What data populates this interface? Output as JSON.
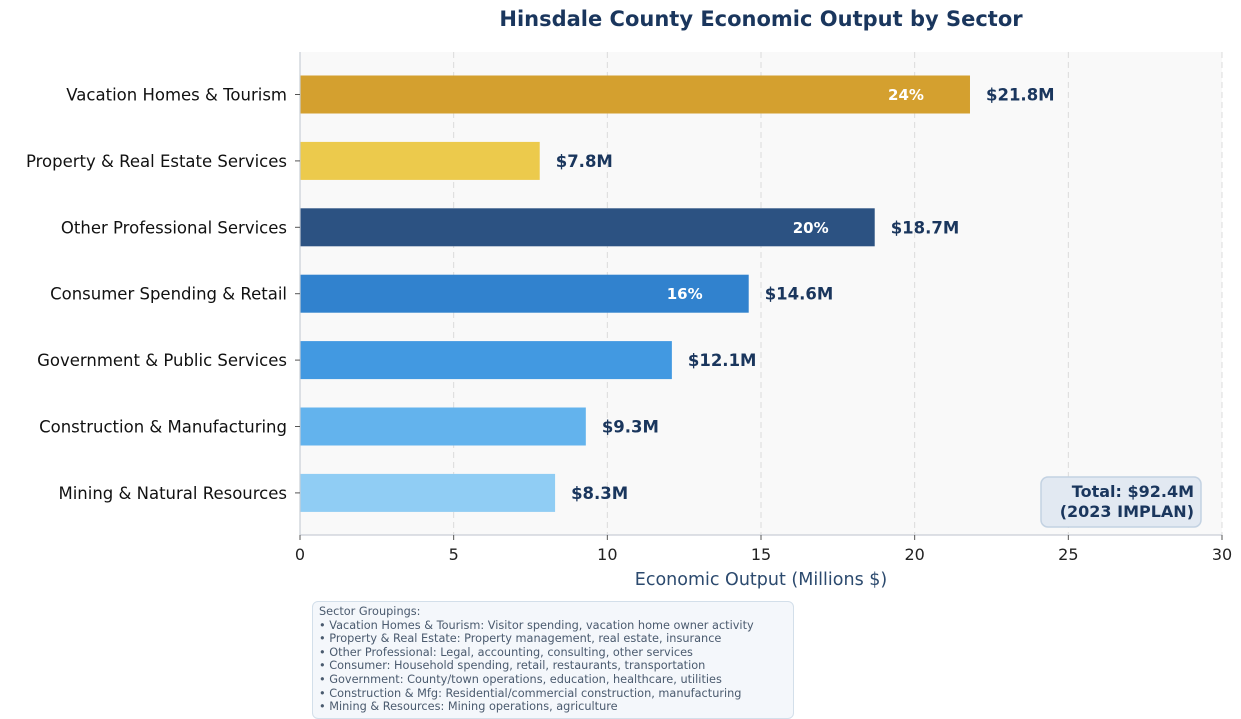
{
  "chart_data": {
    "type": "bar",
    "orientation": "horizontal",
    "title": "Hinsdale County Economic Output by Sector",
    "xlabel": "Economic Output (Millions $)",
    "ylabel": "",
    "xlim": [
      0,
      30
    ],
    "xticks": [
      0,
      5,
      10,
      15,
      20,
      25,
      30
    ],
    "grid": "vertical dashed",
    "categories": [
      "Vacation Homes & Tourism",
      "Property & Real Estate Services",
      "Other Professional Services",
      "Consumer Spending & Retail",
      "Government & Public Services",
      "Construction & Manufacturing",
      "Mining & Natural Resources"
    ],
    "values": [
      21.8,
      7.8,
      18.7,
      14.6,
      12.1,
      9.3,
      8.3
    ],
    "value_labels": [
      "$21.8M",
      "$7.8M",
      "$18.7M",
      "$14.6M",
      "$12.1M",
      "$9.3M",
      "$8.3M"
    ],
    "share_labels": [
      "24%",
      "",
      "20%",
      "16%",
      "",
      "",
      ""
    ],
    "colors": [
      "#d4a02f",
      "#ecca4c",
      "#2c5282",
      "#3182ce",
      "#4299e1",
      "#63b3ed",
      "#90cdf4"
    ],
    "total_annotation": [
      "Total: $92.4M",
      "(2023 IMPLAN)"
    ]
  },
  "notes": {
    "heading": "Sector Groupings:",
    "items": [
      "• Vacation Homes & Tourism: Visitor spending, vacation home owner activity",
      "• Property & Real Estate: Property management, real estate, insurance",
      "• Other Professional: Legal, accounting, consulting, other services",
      "• Consumer: Household spending, retail, restaurants, transportation",
      "• Government: County/town operations, education, healthcare, utilities",
      "• Construction & Mfg: Residential/commercial construction, manufacturing",
      "• Mining & Resources: Mining operations, agriculture"
    ]
  },
  "colors": {
    "title": "#1a365d",
    "plot_bg": "#f9f9f9",
    "axis": "#c9ced6"
  }
}
